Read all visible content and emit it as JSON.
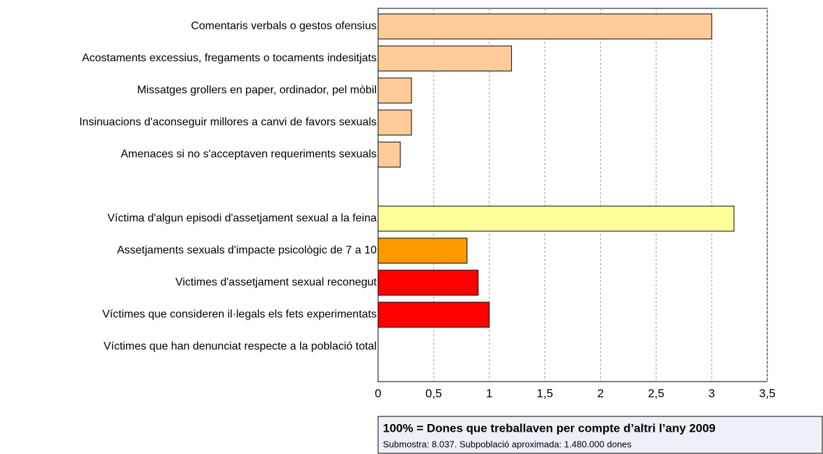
{
  "chart_data": {
    "type": "barh",
    "categories": [
      "Comentaris verbals o gestos ofensius",
      "Acostaments excessius, fregaments o tocaments indesitjats",
      "Missatges grollers en paper, ordinador, pel mòbil",
      "Insinuacions d'aconseguir millores a canvi de favors sexuals",
      "Amenaces si no s'acceptaven requeriments sexuals",
      null,
      "Víctima d'algun episodi d'assetjament sexual a la feina",
      "Assetjaments sexuals d'impacte psicològic de 7 a 10",
      "Victimes d'assetjament sexual reconegut",
      "Víctimes que consideren il·legals els fets experimentats",
      "Víctimes que han denunciat respecte a la població total"
    ],
    "values": [
      3.0,
      1.2,
      0.3,
      0.3,
      0.2,
      null,
      3.2,
      0.8,
      0.9,
      1.0,
      0
    ],
    "colors": [
      "#ffcc99",
      "#ffcc99",
      "#ffcc99",
      "#ffcc99",
      "#ffcc99",
      null,
      "#ffff99",
      "#ff9900",
      "#ff0000",
      "#ff0000",
      "#ff0000"
    ],
    "xlim": [
      0,
      3.5
    ],
    "xticks": [
      0,
      {
        "value": 0.5,
        "label": "0,5"
      },
      1,
      {
        "value": 1.5,
        "label": "1,5"
      },
      2,
      {
        "value": 2.5,
        "label": "2,5"
      },
      3,
      {
        "value": 3.5,
        "label": "3,5"
      }
    ],
    "grid": true,
    "note": {
      "title": "100% = Dones que treballaven per compte d’altri  l’any 2009",
      "text": "Submostra: 8.037. Subpoblació aproximada: 1.480.000 dones"
    }
  }
}
